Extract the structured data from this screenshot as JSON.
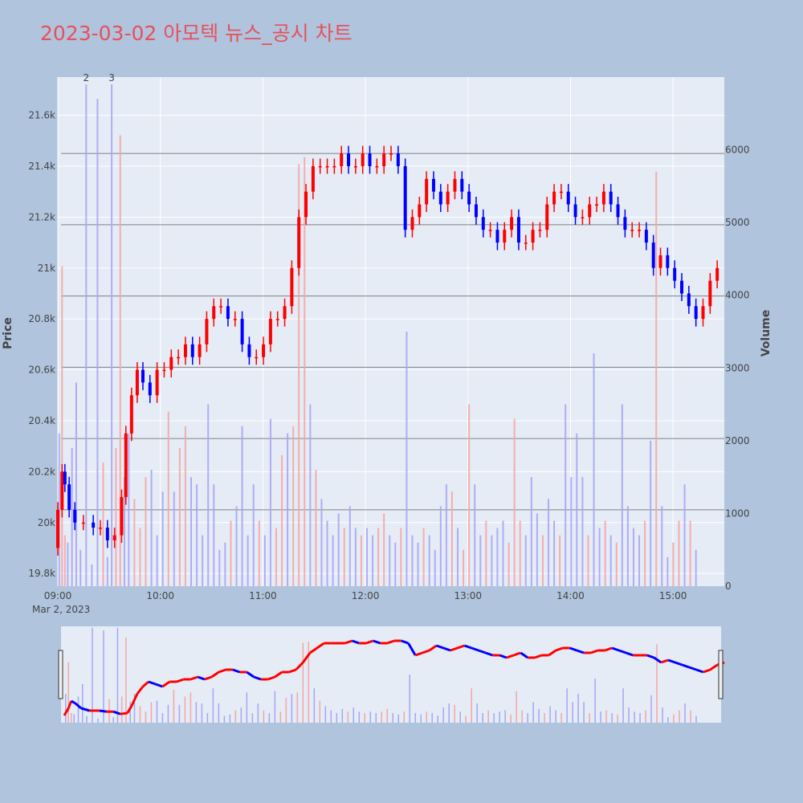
{
  "title": "2023-03-02 아모텍 뉴스_공시 차트",
  "colors": {
    "background": "#b0c4de",
    "plot_bg": "#e5ecf6",
    "up": "#ff0000",
    "down": "#0000ff",
    "up_volume": "#f4a6a6",
    "down_volume": "#a6a6f4",
    "title": "#e8505b"
  },
  "chart_data": {
    "type": "candlestick",
    "date_label": "Mar 2, 2023",
    "x_ticks": [
      "09:00",
      "10:00",
      "11:00",
      "12:00",
      "13:00",
      "14:00",
      "15:00"
    ],
    "x_range_minutes": [
      0,
      390
    ],
    "y_price": {
      "label": "Price",
      "range": [
        19750,
        21750
      ],
      "ticks": [
        19800,
        20000,
        20200,
        20400,
        20600,
        20800,
        21000,
        21200,
        21400,
        21600
      ],
      "tick_labels": [
        "19.8k",
        "20k",
        "20.2k",
        "20.4k",
        "20.6k",
        "20.8k",
        "21k",
        "21.2k",
        "21.4k",
        "21.6k"
      ]
    },
    "y_volume": {
      "label": "Volume",
      "range": [
        0,
        7000
      ],
      "ticks": [
        0,
        1000,
        2000,
        3000,
        4000,
        5000,
        6000
      ],
      "tick_labels": [
        "0",
        "1000",
        "2000",
        "3000",
        "4000",
        "5000",
        "6000"
      ]
    },
    "price_path": [
      [
        0,
        19900
      ],
      [
        3,
        20050
      ],
      [
        5,
        20200
      ],
      [
        8,
        20150
      ],
      [
        12,
        20050
      ],
      [
        18,
        20000
      ],
      [
        25,
        20000
      ],
      [
        30,
        19980
      ],
      [
        35,
        19980
      ],
      [
        40,
        19930
      ],
      [
        45,
        19950
      ],
      [
        48,
        20100
      ],
      [
        52,
        20350
      ],
      [
        56,
        20500
      ],
      [
        60,
        20600
      ],
      [
        65,
        20550
      ],
      [
        70,
        20500
      ],
      [
        75,
        20600
      ],
      [
        80,
        20600
      ],
      [
        85,
        20650
      ],
      [
        90,
        20650
      ],
      [
        95,
        20700
      ],
      [
        100,
        20650
      ],
      [
        105,
        20700
      ],
      [
        110,
        20800
      ],
      [
        115,
        20850
      ],
      [
        120,
        20850
      ],
      [
        125,
        20800
      ],
      [
        130,
        20800
      ],
      [
        135,
        20700
      ],
      [
        140,
        20650
      ],
      [
        145,
        20650
      ],
      [
        150,
        20700
      ],
      [
        155,
        20800
      ],
      [
        160,
        20800
      ],
      [
        165,
        20850
      ],
      [
        170,
        21000
      ],
      [
        175,
        21200
      ],
      [
        180,
        21300
      ],
      [
        185,
        21400
      ],
      [
        190,
        21400
      ],
      [
        195,
        21400
      ],
      [
        200,
        21400
      ],
      [
        205,
        21450
      ],
      [
        210,
        21400
      ],
      [
        215,
        21400
      ],
      [
        220,
        21450
      ],
      [
        225,
        21400
      ],
      [
        230,
        21400
      ],
      [
        235,
        21450
      ],
      [
        240,
        21450
      ],
      [
        245,
        21400
      ],
      [
        250,
        21150
      ],
      [
        255,
        21200
      ],
      [
        260,
        21250
      ],
      [
        265,
        21350
      ],
      [
        270,
        21300
      ],
      [
        275,
        21250
      ],
      [
        280,
        21300
      ],
      [
        285,
        21350
      ],
      [
        290,
        21300
      ],
      [
        295,
        21250
      ],
      [
        300,
        21200
      ],
      [
        305,
        21150
      ],
      [
        310,
        21150
      ],
      [
        315,
        21100
      ],
      [
        320,
        21150
      ],
      [
        325,
        21200
      ],
      [
        330,
        21100
      ],
      [
        335,
        21100
      ],
      [
        340,
        21150
      ],
      [
        345,
        21150
      ],
      [
        350,
        21250
      ],
      [
        355,
        21300
      ],
      [
        360,
        21300
      ],
      [
        365,
        21250
      ],
      [
        370,
        21200
      ],
      [
        375,
        21200
      ],
      [
        380,
        21250
      ],
      [
        385,
        21250
      ],
      [
        390,
        21300
      ],
      [
        395,
        21250
      ],
      [
        400,
        21200
      ],
      [
        405,
        21150
      ],
      [
        410,
        21150
      ],
      [
        415,
        21150
      ],
      [
        420,
        21100
      ],
      [
        425,
        21000
      ],
      [
        430,
        21050
      ],
      [
        435,
        21000
      ],
      [
        440,
        20950
      ],
      [
        445,
        20900
      ],
      [
        450,
        20850
      ],
      [
        455,
        20800
      ],
      [
        460,
        20850
      ],
      [
        465,
        20950
      ],
      [
        470,
        21000
      ]
    ],
    "volume_bars": [
      [
        1,
        2100,
        "d"
      ],
      [
        3,
        4400,
        "u"
      ],
      [
        5,
        700,
        "u"
      ],
      [
        7,
        600,
        "d"
      ],
      [
        10,
        1900,
        "d"
      ],
      [
        13,
        2800,
        "d"
      ],
      [
        16,
        500,
        "d"
      ],
      [
        20,
        6900,
        "d"
      ],
      [
        24,
        300,
        "d"
      ],
      [
        28,
        6700,
        "d"
      ],
      [
        32,
        1700,
        "u"
      ],
      [
        35,
        400,
        "d"
      ],
      [
        38,
        6900,
        "d"
      ],
      [
        41,
        1900,
        "u"
      ],
      [
        44,
        6200,
        "u"
      ],
      [
        47,
        1500,
        "d"
      ],
      [
        50,
        2100,
        "d"
      ],
      [
        54,
        1200,
        "u"
      ],
      [
        58,
        800,
        "u"
      ],
      [
        62,
        1500,
        "u"
      ],
      [
        66,
        1600,
        "d"
      ],
      [
        70,
        700,
        "d"
      ],
      [
        74,
        1300,
        "d"
      ],
      [
        78,
        2400,
        "u"
      ],
      [
        82,
        1300,
        "d"
      ],
      [
        86,
        1900,
        "u"
      ],
      [
        90,
        2200,
        "u"
      ],
      [
        94,
        1500,
        "d"
      ],
      [
        98,
        1400,
        "d"
      ],
      [
        102,
        700,
        "d"
      ],
      [
        106,
        2500,
        "d"
      ],
      [
        110,
        1400,
        "d"
      ],
      [
        114,
        500,
        "d"
      ],
      [
        118,
        600,
        "d"
      ],
      [
        122,
        900,
        "u"
      ],
      [
        126,
        1100,
        "d"
      ],
      [
        130,
        2200,
        "d"
      ],
      [
        134,
        700,
        "d"
      ],
      [
        138,
        1400,
        "d"
      ],
      [
        142,
        900,
        "u"
      ],
      [
        146,
        700,
        "d"
      ],
      [
        150,
        2300,
        "d"
      ],
      [
        154,
        800,
        "u"
      ],
      [
        158,
        1800,
        "u"
      ],
      [
        162,
        2100,
        "d"
      ],
      [
        166,
        2200,
        "u"
      ],
      [
        170,
        5800,
        "u"
      ],
      [
        174,
        5900,
        "u"
      ],
      [
        178,
        2500,
        "d"
      ],
      [
        182,
        1600,
        "u"
      ],
      [
        186,
        1200,
        "d"
      ],
      [
        190,
        900,
        "d"
      ],
      [
        194,
        700,
        "d"
      ],
      [
        198,
        1000,
        "d"
      ],
      [
        202,
        800,
        "u"
      ],
      [
        206,
        1100,
        "d"
      ],
      [
        210,
        800,
        "d"
      ],
      [
        214,
        700,
        "u"
      ],
      [
        218,
        800,
        "d"
      ],
      [
        222,
        700,
        "d"
      ],
      [
        226,
        800,
        "u"
      ],
      [
        230,
        1000,
        "u"
      ],
      [
        234,
        700,
        "d"
      ],
      [
        238,
        600,
        "d"
      ],
      [
        242,
        800,
        "u"
      ],
      [
        246,
        3500,
        "d"
      ],
      [
        250,
        700,
        "d"
      ],
      [
        254,
        600,
        "d"
      ],
      [
        258,
        800,
        "u"
      ],
      [
        262,
        700,
        "d"
      ],
      [
        266,
        500,
        "d"
      ],
      [
        270,
        1100,
        "d"
      ],
      [
        274,
        1400,
        "d"
      ],
      [
        278,
        1300,
        "u"
      ],
      [
        282,
        800,
        "d"
      ],
      [
        286,
        500,
        "u"
      ],
      [
        290,
        2500,
        "u"
      ],
      [
        294,
        1400,
        "d"
      ],
      [
        298,
        700,
        "d"
      ],
      [
        302,
        900,
        "u"
      ],
      [
        306,
        700,
        "d"
      ],
      [
        310,
        800,
        "d"
      ],
      [
        314,
        900,
        "d"
      ],
      [
        318,
        600,
        "u"
      ],
      [
        322,
        2300,
        "u"
      ],
      [
        326,
        900,
        "u"
      ],
      [
        330,
        700,
        "d"
      ],
      [
        334,
        1500,
        "d"
      ],
      [
        338,
        1000,
        "d"
      ],
      [
        342,
        700,
        "u"
      ],
      [
        346,
        1200,
        "d"
      ],
      [
        350,
        900,
        "d"
      ],
      [
        354,
        700,
        "u"
      ],
      [
        358,
        2500,
        "d"
      ],
      [
        362,
        1500,
        "d"
      ],
      [
        366,
        2100,
        "d"
      ],
      [
        370,
        1500,
        "d"
      ],
      [
        374,
        700,
        "u"
      ],
      [
        378,
        3200,
        "d"
      ],
      [
        382,
        800,
        "d"
      ],
      [
        386,
        900,
        "u"
      ],
      [
        390,
        700,
        "d"
      ],
      [
        394,
        600,
        "u"
      ],
      [
        398,
        2500,
        "d"
      ],
      [
        402,
        1100,
        "d"
      ],
      [
        406,
        800,
        "d"
      ],
      [
        410,
        700,
        "d"
      ],
      [
        414,
        900,
        "u"
      ],
      [
        418,
        2000,
        "d"
      ],
      [
        422,
        5700,
        "u"
      ],
      [
        426,
        1100,
        "d"
      ],
      [
        430,
        400,
        "d"
      ],
      [
        434,
        600,
        "u"
      ],
      [
        438,
        900,
        "u"
      ],
      [
        442,
        1400,
        "d"
      ],
      [
        446,
        900,
        "u"
      ],
      [
        450,
        500,
        "d"
      ]
    ],
    "annotations": [
      {
        "text": "2",
        "x_minutes": 20
      },
      {
        "text": "3",
        "x_minutes": 38
      }
    ],
    "price_levels": [
      21450,
      21170,
      20890,
      20610,
      20330,
      20050
    ]
  }
}
